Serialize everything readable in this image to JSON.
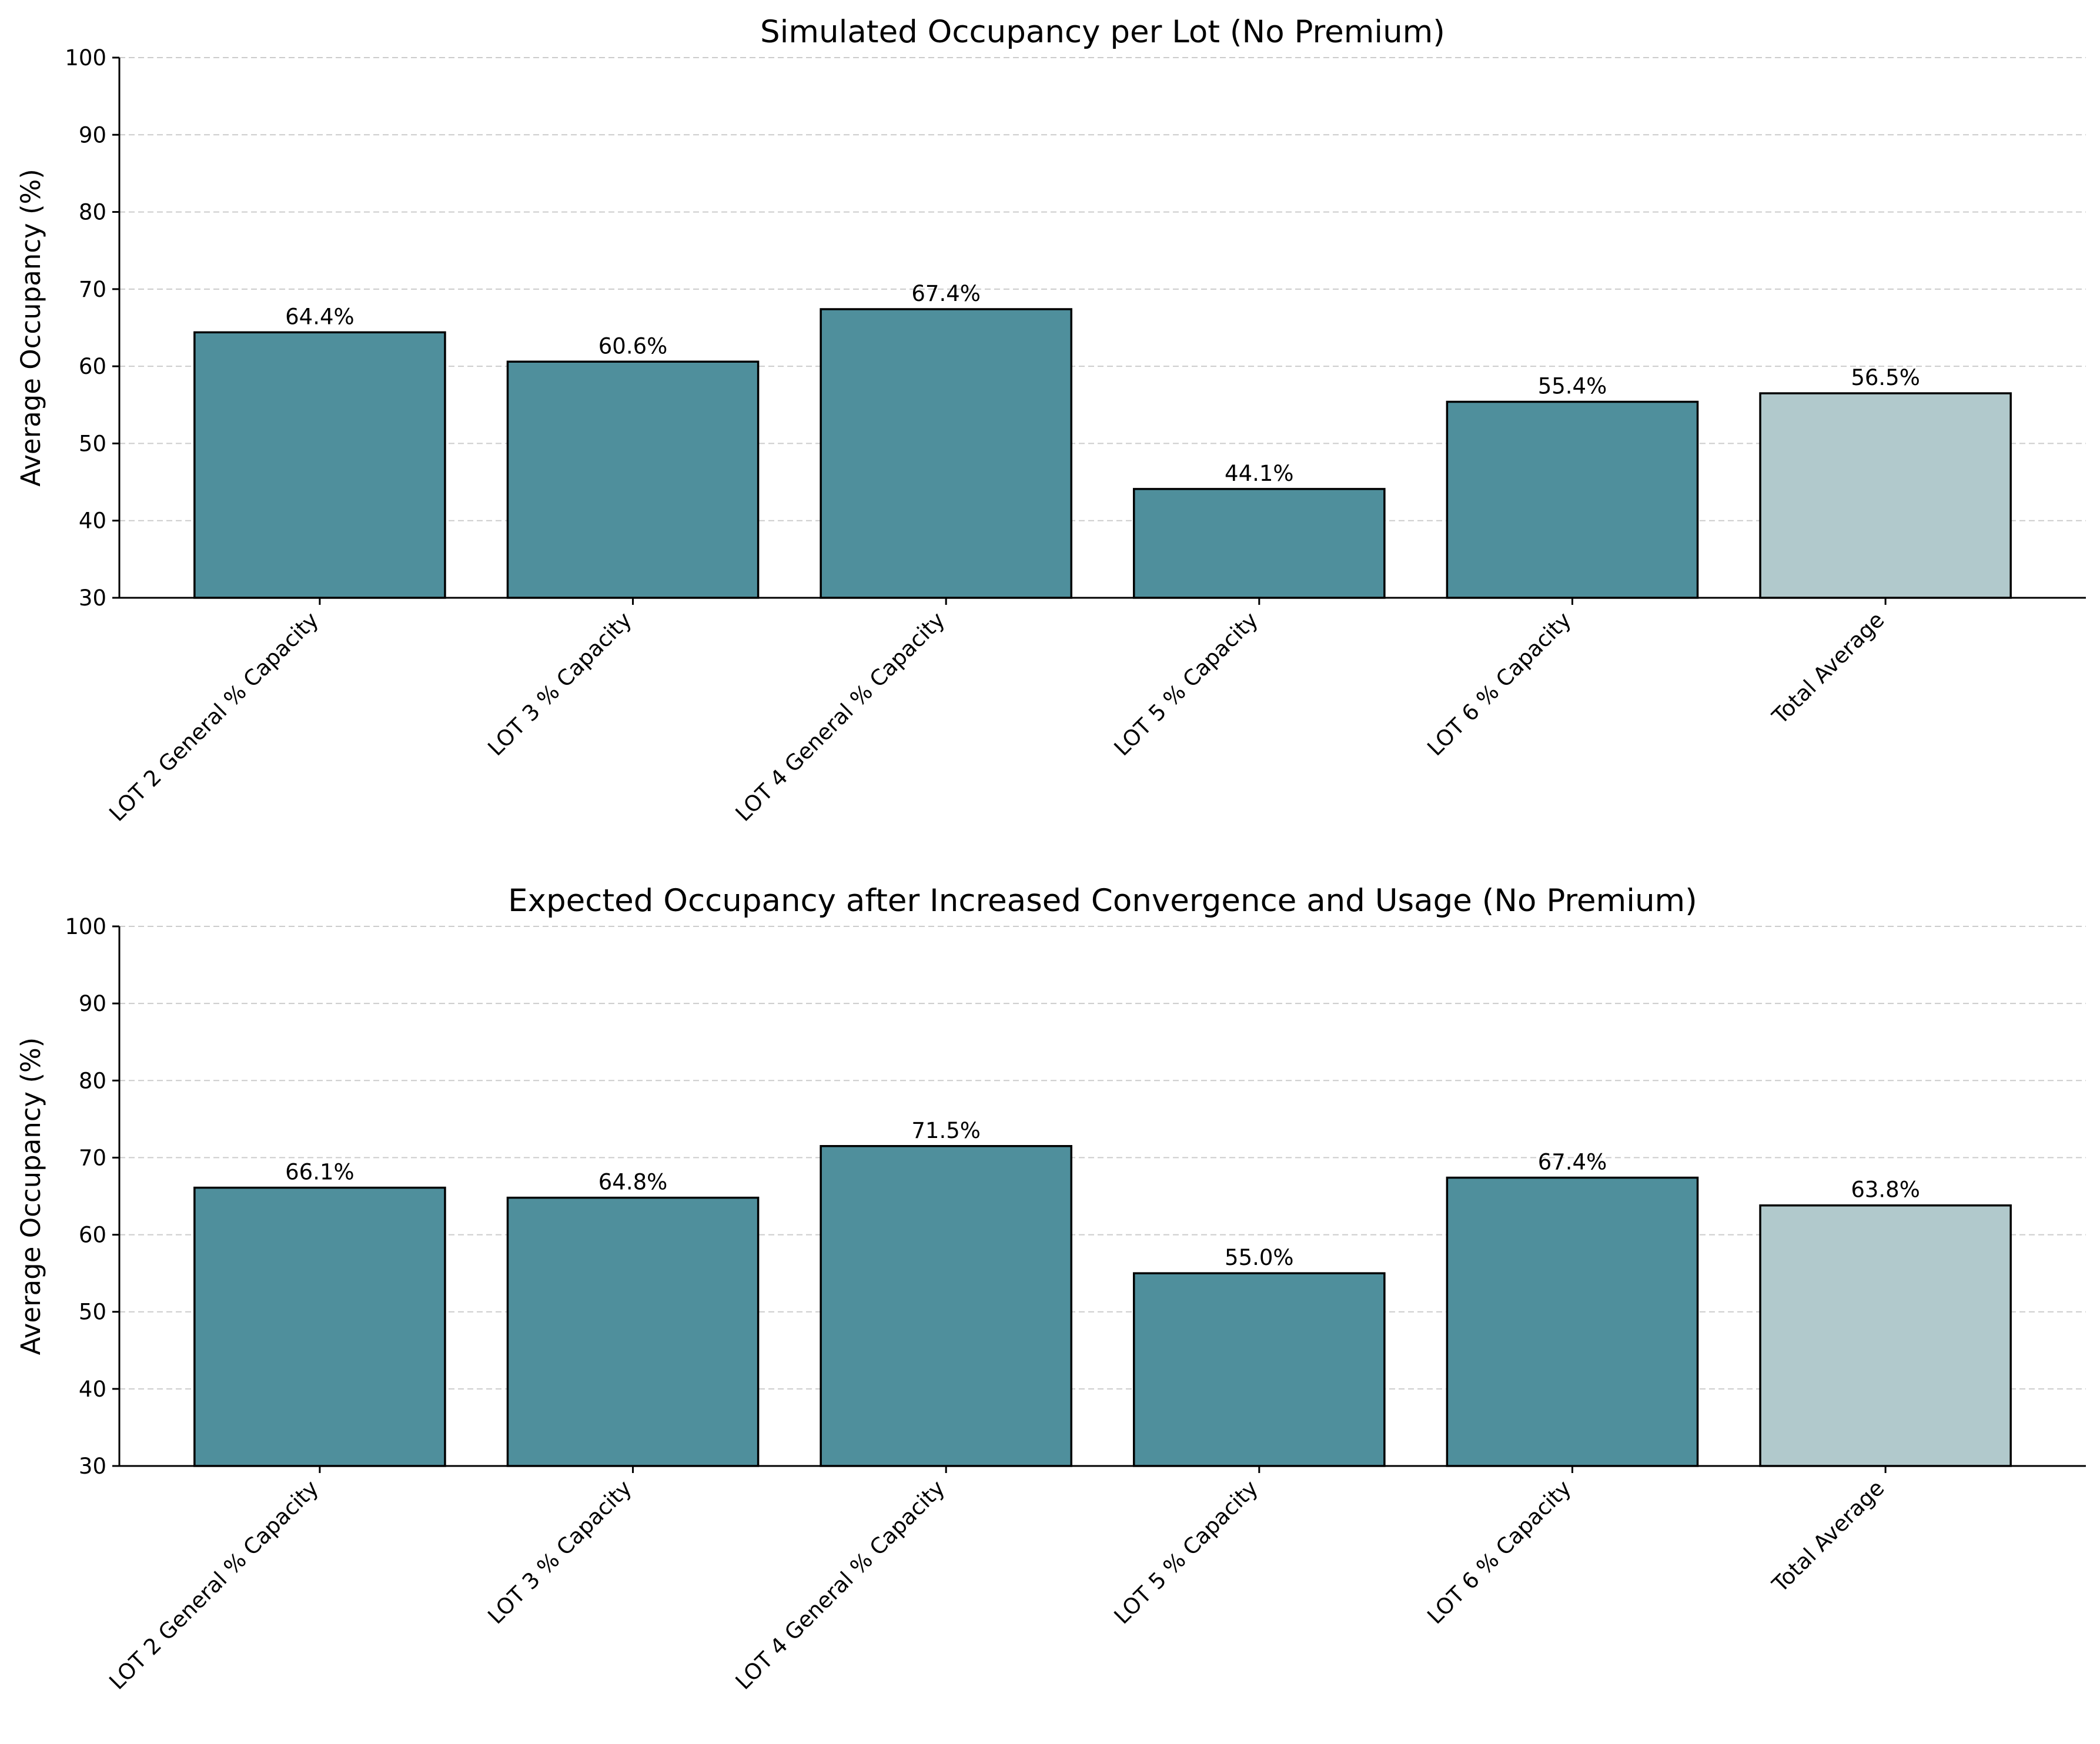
{
  "chart_data": [
    {
      "type": "bar",
      "title": "Simulated Occupancy per Lot (No Premium)",
      "xlabel": "",
      "ylabel": "Average Occupancy (%)",
      "ylim": [
        30,
        100
      ],
      "yticks": [
        30,
        40,
        50,
        60,
        70,
        80,
        90,
        100
      ],
      "grid": "y-dashed",
      "categories": [
        "LOT 2 General % Capacity",
        "LOT 3 % Capacity",
        "LOT 4 General % Capacity",
        "LOT 5 % Capacity",
        "LOT 6 % Capacity",
        "Total Average"
      ],
      "values": [
        64.4,
        60.6,
        67.4,
        44.1,
        55.4,
        56.5
      ],
      "value_labels": [
        "64.4%",
        "60.6%",
        "67.4%",
        "44.1%",
        "55.4%",
        "56.5%"
      ],
      "bar_colors": [
        "#4f8f9c",
        "#4f8f9c",
        "#4f8f9c",
        "#4f8f9c",
        "#4f8f9c",
        "#b1c9cc"
      ]
    },
    {
      "type": "bar",
      "title": "Expected Occupancy after Increased Convergence and Usage (No Premium)",
      "xlabel": "",
      "ylabel": "Average Occupancy (%)",
      "ylim": [
        30,
        100
      ],
      "yticks": [
        30,
        40,
        50,
        60,
        70,
        80,
        90,
        100
      ],
      "grid": "y-dashed",
      "categories": [
        "LOT 2 General % Capacity",
        "LOT 3 % Capacity",
        "LOT 4 General % Capacity",
        "LOT 5 % Capacity",
        "LOT 6 % Capacity",
        "Total Average"
      ],
      "values": [
        66.1,
        64.8,
        71.5,
        55.0,
        67.4,
        63.8
      ],
      "value_labels": [
        "66.1%",
        "64.8%",
        "71.5%",
        "55.0%",
        "67.4%",
        "63.8%"
      ],
      "bar_colors": [
        "#4f8f9c",
        "#4f8f9c",
        "#4f8f9c",
        "#4f8f9c",
        "#4f8f9c",
        "#b1c9cc"
      ]
    }
  ]
}
